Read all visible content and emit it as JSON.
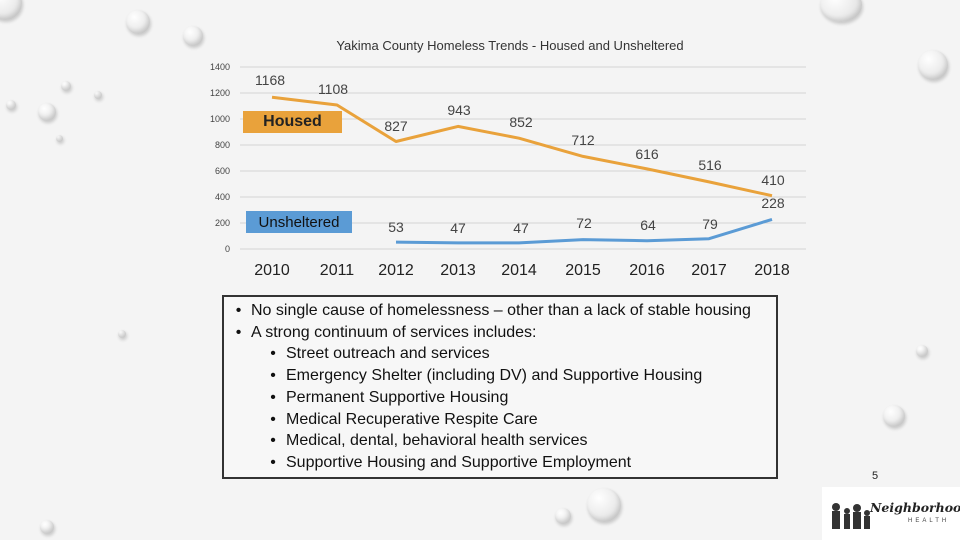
{
  "chart_data": {
    "type": "line",
    "title": "Yakima County Homeless Trends - Housed and Unsheltered",
    "xlabel": "",
    "ylabel": "",
    "ylim": [
      0,
      1400
    ],
    "yticks": [
      "0",
      "200",
      "400",
      "600",
      "800",
      "1000",
      "1200",
      "1400"
    ],
    "categories": [
      "2010",
      "2011",
      "2012",
      "2013",
      "2014",
      "2015",
      "2016",
      "2017",
      "2018"
    ],
    "series": [
      {
        "name": "Housed",
        "values": [
          1168,
          1108,
          827,
          943,
          852,
          712,
          616,
          516,
          410
        ],
        "labels": [
          "1168",
          "1108",
          "827",
          "943",
          "852",
          "712",
          "616",
          "516",
          "410"
        ],
        "color": "#e9a23b"
      },
      {
        "name": "Unsheltered",
        "values": [
          null,
          null,
          53,
          47,
          47,
          72,
          64,
          79,
          228
        ],
        "labels": [
          "",
          "",
          "53",
          "47",
          "47",
          "72",
          "64",
          "79",
          "228"
        ],
        "color": "#5b9bd5"
      }
    ],
    "grid": true,
    "legend": "callouts"
  },
  "bullets": [
    {
      "level": 1,
      "text": "No single cause of homelessness – other than a lack of stable housing"
    },
    {
      "level": 1,
      "text": "A strong continuum of services includes:"
    },
    {
      "level": 2,
      "text": "Street outreach and services"
    },
    {
      "level": 2,
      "text": "Emergency Shelter (including DV) and  Supportive Housing"
    },
    {
      "level": 2,
      "text": "Permanent Supportive Housing"
    },
    {
      "level": 2,
      "text": "Medical Recuperative Respite Care"
    },
    {
      "level": 2,
      "text": "Medical, dental, behavioral health services"
    },
    {
      "level": 2,
      "text": "Supportive Housing and Supportive Employment"
    }
  ],
  "bullet_glyph": "•",
  "slide_number": "5",
  "logo": {
    "name": "Neighborhood",
    "sub": "HEALTH"
  },
  "colors": {
    "housed": "#e9a23b",
    "unsheltered": "#5b9bd5",
    "background": "#f4f4f4"
  }
}
